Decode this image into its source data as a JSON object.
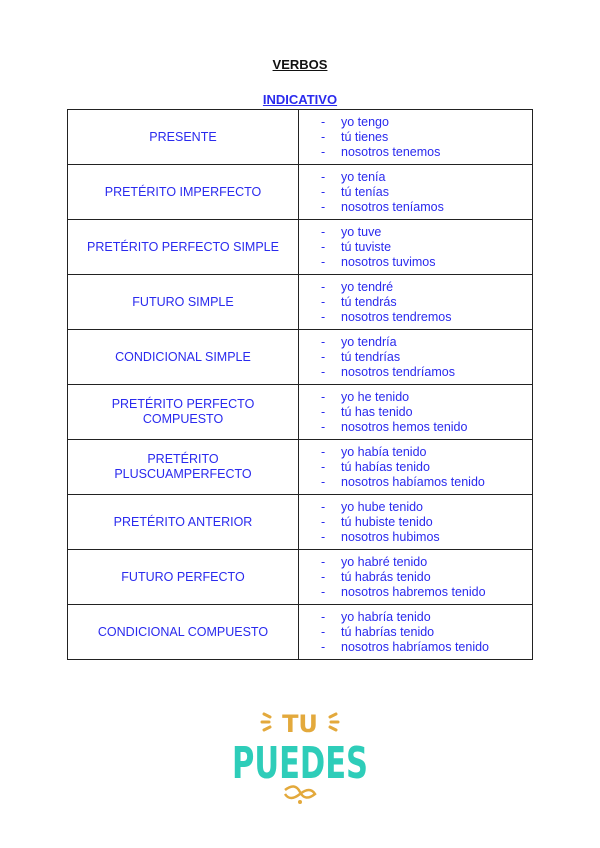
{
  "title": "VERBOS",
  "subtitle": "INDICATIVO",
  "rows": [
    {
      "tense": "PRESENTE",
      "forms": [
        "yo tengo",
        "tú tienes",
        "nosotros tenemos"
      ]
    },
    {
      "tense": "PRETÉRITO IMPERFECTO",
      "forms": [
        "yo tenía",
        "tú tenías",
        "nosotros teníamos"
      ]
    },
    {
      "tense": "PRETÉRITO PERFECTO SIMPLE",
      "forms": [
        "yo tuve",
        "tú tuviste",
        "nosotros tuvimos"
      ]
    },
    {
      "tense": "FUTURO SIMPLE",
      "forms": [
        "yo tendré",
        "tú tendrás",
        "nosotros tendremos"
      ]
    },
    {
      "tense": "CONDICIONAL SIMPLE",
      "forms": [
        "yo tendría",
        "tú tendrías",
        "nosotros tendríamos"
      ]
    },
    {
      "tense": "PRETÉRITO PERFECTO COMPUESTO",
      "forms": [
        "yo he tenido",
        "tú has tenido",
        "nosotros hemos tenido"
      ]
    },
    {
      "tense": "PRETÉRITO PLUSCUAMPERFECTO",
      "forms": [
        "yo había tenido",
        "tú habías tenido",
        "nosotros habíamos tenido"
      ]
    },
    {
      "tense": "PRETÉRITO ANTERIOR",
      "forms": [
        "yo hube tenido",
        "tú hubiste tenido",
        "nosotros hubimos"
      ]
    },
    {
      "tense": "FUTURO PERFECTO",
      "forms": [
        "yo habré tenido",
        "tú habrás tenido",
        "nosotros habremos tenido"
      ]
    },
    {
      "tense": "CONDICIONAL COMPUESTO",
      "forms": [
        "yo habría tenido",
        "tú habrías tenido",
        "nosotros habríamos tenido"
      ]
    }
  ],
  "logo": {
    "line1": "TU",
    "line2": "PUEDES",
    "colors": {
      "gold": "#e3a93c",
      "teal": "#2ecdb9"
    }
  },
  "colors": {
    "text": "#2a2aee"
  }
}
